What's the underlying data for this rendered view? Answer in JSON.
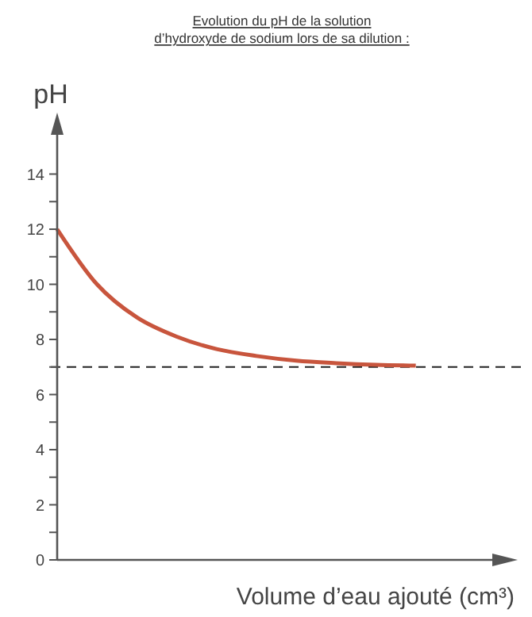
{
  "chart_data": {
    "type": "line",
    "title": "Evolution du pH de la solution\nd’hydroxyde de sodium lors de sa dilution :",
    "ylabel": "pH",
    "xlabel": "Volume d’eau ajouté (cm³)",
    "categories": [
      null,
      null,
      null,
      null,
      null,
      null,
      null,
      null,
      null,
      null,
      null,
      null
    ],
    "series": [
      {
        "color": "#c8553d",
        "values": [
          12,
          10,
          8.8,
          8.1,
          7.65,
          7.4,
          7.23,
          7.14,
          7.08,
          7.05,
          null,
          null
        ]
      }
    ],
    "ylim": [
      0,
      16
    ],
    "yticks": [
      0,
      {
        "value": 1,
        "label": null
      },
      2,
      {
        "value": 3,
        "label": null
      },
      4,
      {
        "value": 5,
        "label": null
      },
      6,
      {
        "value": 7,
        "label": null
      },
      8,
      {
        "value": 9,
        "label": null
      },
      10,
      {
        "value": 11,
        "label": null
      },
      12,
      {
        "value": 13,
        "label": null
      },
      14
    ],
    "ref_lines": [
      {
        "axis": "y",
        "value": 7,
        "line_style": "dashed",
        "color": "#222222"
      }
    ],
    "marker": "none",
    "line_style": "solid",
    "grid": false
  }
}
